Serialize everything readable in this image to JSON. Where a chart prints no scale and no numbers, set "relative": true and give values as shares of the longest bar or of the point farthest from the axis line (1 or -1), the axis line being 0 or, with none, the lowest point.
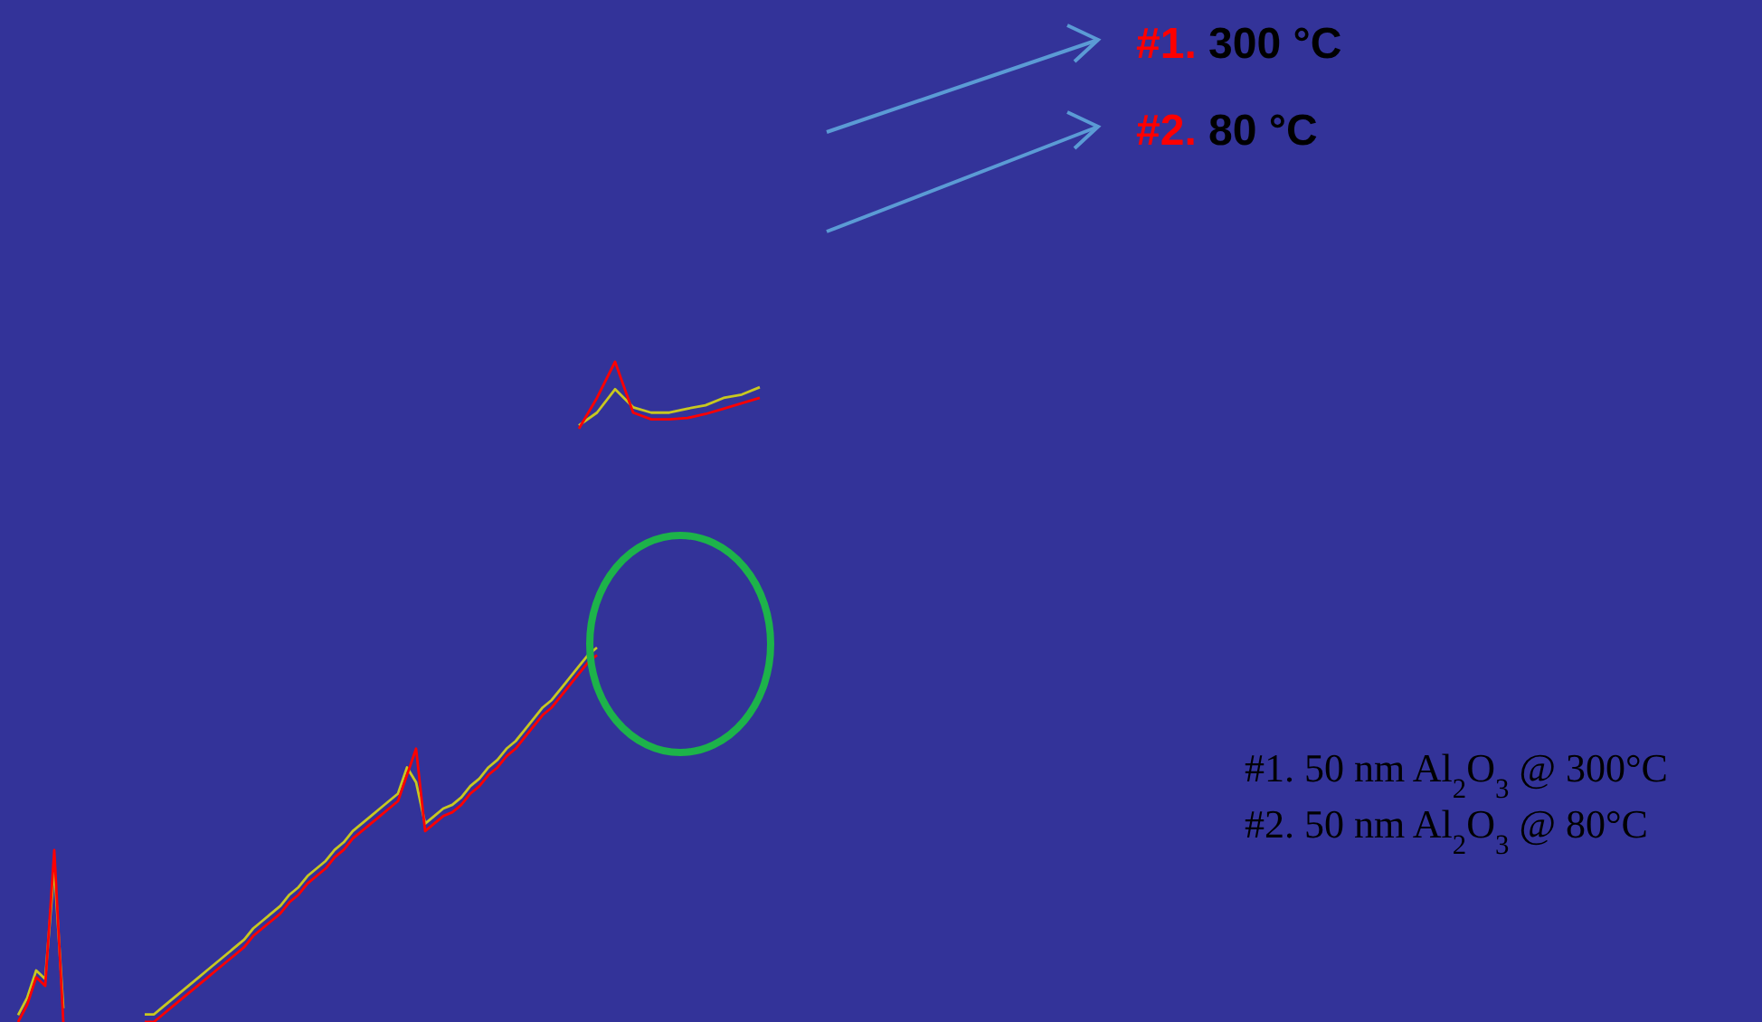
{
  "chart_data": [
    {
      "type": "line",
      "relative": true,
      "categories": [
        null,
        null,
        null,
        null,
        null,
        null
      ],
      "series": [
        {
          "color": "#c8c820",
          "values": [
            0.04,
            0.14,
            0.3,
            0.25,
            0.9,
            0.08
          ]
        },
        {
          "color": "#ff0000",
          "values": [
            0,
            0.1,
            0.26,
            0.21,
            1,
            0
          ]
        }
      ]
    },
    {
      "type": "line",
      "relative": true,
      "categories": [
        null,
        null,
        null,
        null,
        null,
        null,
        null,
        null,
        null,
        null,
        null,
        null,
        null,
        null,
        null,
        null,
        null,
        null,
        null,
        null,
        null,
        null,
        null,
        null,
        null,
        null,
        null,
        null,
        null,
        null,
        null,
        null,
        null,
        null,
        null,
        null,
        null,
        null,
        null,
        null,
        null,
        null,
        null,
        null,
        null,
        null,
        null,
        null,
        null,
        null,
        null
      ],
      "series": [
        {
          "color": "#c8c820",
          "values": [
            0.02,
            0.02,
            0.04,
            0.06,
            0.08,
            0.1,
            0.12,
            0.14,
            0.16,
            0.18,
            0.2,
            0.22,
            0.25,
            0.27,
            0.29,
            0.31,
            0.34,
            0.36,
            0.39,
            0.41,
            0.43,
            0.46,
            0.48,
            0.51,
            0.53,
            0.55,
            0.57,
            0.59,
            0.61,
            0.68,
            0.64,
            0.53,
            0.55,
            0.57,
            0.58,
            0.6,
            0.63,
            0.65,
            0.68,
            0.7,
            0.73,
            0.75,
            0.78,
            0.81,
            0.84,
            0.86,
            0.89,
            0.92,
            0.95,
            0.98,
            1
          ]
        },
        {
          "color": "#ff0000",
          "values": [
            0,
            0,
            0.02,
            0.04,
            0.06,
            0.08,
            0.1,
            0.12,
            0.14,
            0.16,
            0.18,
            0.2,
            0.23,
            0.25,
            0.27,
            0.29,
            0.32,
            0.34,
            0.37,
            0.39,
            0.41,
            0.44,
            0.46,
            0.49,
            0.51,
            0.53,
            0.55,
            0.57,
            0.59,
            0.66,
            0.73,
            0.51,
            0.53,
            0.55,
            0.56,
            0.58,
            0.61,
            0.63,
            0.66,
            0.68,
            0.71,
            0.73,
            0.76,
            0.79,
            0.82,
            0.84,
            0.87,
            0.9,
            0.93,
            0.96,
            0.98
          ]
        }
      ],
      "annotations": [
        "#1. 300 °C",
        "#2. 80 °C",
        "#1. 50 nm Al$_{2}$O$_{3}$ @ 300°C",
        "#2. 50 nm Al$_{2}$O$_{3}$ @ 80°C"
      ]
    },
    {
      "type": "line",
      "relative": true,
      "categories": [
        null,
        null,
        null,
        null,
        null,
        null,
        null,
        null,
        null,
        null,
        null
      ],
      "series": [
        {
          "color": "#c8c820",
          "values": [
            0.05,
            0.24,
            0.59,
            0.32,
            0.24,
            0.24,
            0.3,
            0.35,
            0.46,
            0.51,
            0.62
          ]
        },
        {
          "color": "#ff0000",
          "values": [
            0,
            0.46,
            1,
            0.24,
            0.14,
            0.14,
            0.16,
            0.22,
            0.3,
            0.38,
            0.46
          ]
        }
      ]
    }
  ]
}
